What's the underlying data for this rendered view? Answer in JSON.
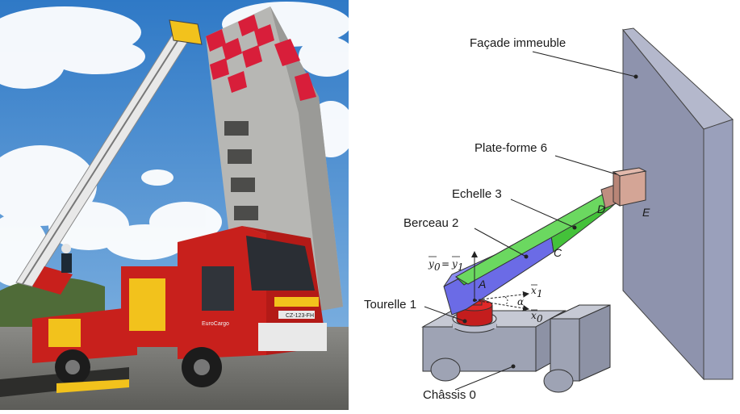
{
  "photo": {
    "truck_plate": "CZ-123-FH",
    "truck_model": "EuroCargo",
    "colors": {
      "sky": "#3f86cf",
      "truck_red": "#c8201c",
      "truck_yellow": "#f2c21c",
      "tower_red": "#d81e3a"
    }
  },
  "diagram": {
    "labels": {
      "facade": "Façade immeuble",
      "platform": "Plate-forme 6",
      "ladder": "Echelle 3",
      "cradle": "Berceau 2",
      "turret": "Tourelle 1",
      "chassis": "Châssis 0"
    },
    "points": {
      "A": "A",
      "C": "C",
      "D": "D",
      "E": "E"
    },
    "vectors": {
      "y0": "y",
      "y0_sub": "0",
      "eq": "=",
      "y1": "y",
      "y1_sub": "1",
      "x1": "x",
      "x1_sub": "1",
      "x0": "x",
      "x0_sub": "0",
      "alpha": "α"
    },
    "colors": {
      "facade": "#8e93ad",
      "ladder": "#44c23a",
      "cradle": "#6b6be6",
      "turret": "#d42222",
      "chassis": "#a9adbc",
      "platform": "#d4a596"
    }
  }
}
